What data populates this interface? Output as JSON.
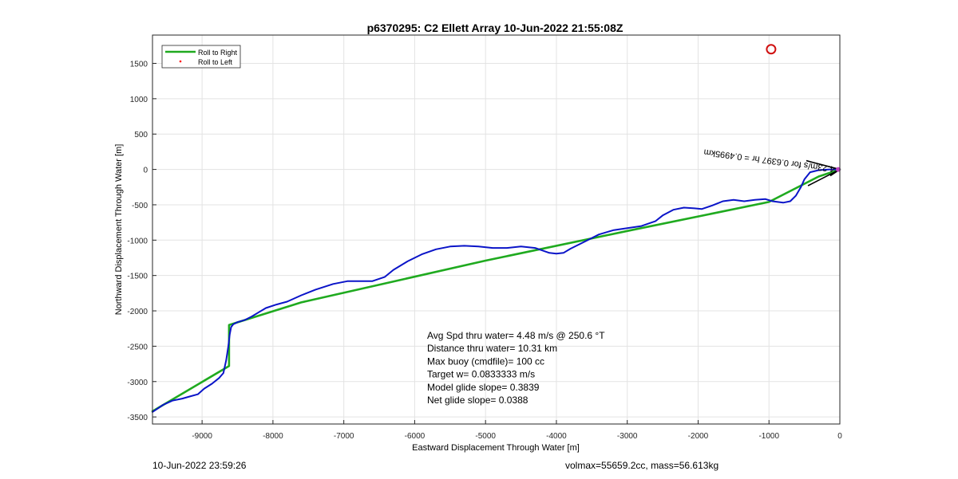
{
  "chart_data": {
    "type": "line",
    "title": "p6370295: C2 Ellett Array 10-Jun-2022 21:55:08Z",
    "xlabel": "Eastward Displacement Through Water [m]",
    "ylabel": "Northward Displacement Through Water [m]",
    "xlim": [
      -9700,
      0
    ],
    "ylim": [
      -3600,
      1900
    ],
    "xticks": [
      -9000,
      -8000,
      -7000,
      -6000,
      -5000,
      -4000,
      -3000,
      -2000,
      -1000,
      0
    ],
    "yticks": [
      -3500,
      -3000,
      -2500,
      -2000,
      -1500,
      -1000,
      -500,
      0,
      500,
      1000,
      1500
    ],
    "grid": true,
    "legend": {
      "placement": "top-left",
      "entries": [
        {
          "label": "Roll to Right",
          "color": "#1faa1f",
          "marker": "line"
        },
        {
          "label": "Roll to Left",
          "color": "#ff0000",
          "marker": "dot"
        }
      ]
    },
    "series": [
      {
        "name": "Roll to Right",
        "color": "#1faa1f",
        "x": [
          -9700,
          -8620,
          -8620,
          -7600,
          -5000,
          -3000,
          -1000,
          -300,
          0
        ],
        "y": [
          -3420,
          -2780,
          -2200,
          -1880,
          -1290,
          -870,
          -460,
          -100,
          0
        ]
      },
      {
        "color": "#0a14c8",
        "x": [
          -9700,
          -9550,
          -9420,
          -9280,
          -9170,
          -9060,
          -8970,
          -8860,
          -8760,
          -8700,
          -8660,
          -8630,
          -8610,
          -8590,
          -8560,
          -8500,
          -8400,
          -8300,
          -8200,
          -8100,
          -7950,
          -7800,
          -7600,
          -7400,
          -7150,
          -6950,
          -6800,
          -6600,
          -6420,
          -6300,
          -6100,
          -5900,
          -5700,
          -5500,
          -5300,
          -5100,
          -4900,
          -4700,
          -4500,
          -4300,
          -4100,
          -4000,
          -3900,
          -3800,
          -3600,
          -3400,
          -3200,
          -3000,
          -2800,
          -2600,
          -2500,
          -2350,
          -2200,
          -2050,
          -1950,
          -1800,
          -1650,
          -1500,
          -1350,
          -1200,
          -1050,
          -950,
          -800,
          -700,
          -620,
          -550,
          -500,
          -420,
          -300,
          -150,
          0
        ],
        "y": [
          -3430,
          -3330,
          -3270,
          -3240,
          -3210,
          -3180,
          -3100,
          -3030,
          -2950,
          -2880,
          -2700,
          -2500,
          -2330,
          -2230,
          -2190,
          -2160,
          -2130,
          -2080,
          -2020,
          -1960,
          -1910,
          -1870,
          -1780,
          -1700,
          -1620,
          -1580,
          -1580,
          -1580,
          -1520,
          -1420,
          -1300,
          -1200,
          -1130,
          -1090,
          -1080,
          -1090,
          -1110,
          -1110,
          -1090,
          -1110,
          -1180,
          -1190,
          -1180,
          -1120,
          -1020,
          -920,
          -860,
          -830,
          -800,
          -730,
          -650,
          -570,
          -540,
          -550,
          -560,
          -510,
          -450,
          -430,
          -450,
          -430,
          -420,
          -450,
          -470,
          -450,
          -370,
          -250,
          -140,
          -40,
          -10,
          0,
          0
        ]
      }
    ],
    "annotations": [
      "Avg Spd thru water=  4.48 m/s @ 250.6 °T",
      "Distance thru water= 10.31 km",
      "Max buoy (cmdfile)= 100 cc",
      "Target w= 0.0833333 m/s",
      "Model glide slope= 0.3839",
      "Net glide slope= 0.0388"
    ],
    "rotated_label": "4.23m/s for 0.6397 hr = 0.4995km",
    "marker": {
      "x": -970,
      "y": 1700,
      "color": "#d01010",
      "shape": "circle"
    },
    "arrow": {
      "x0": -450,
      "y0": -230,
      "x1": 0,
      "y1": 0,
      "color": "#000000"
    }
  },
  "footer": {
    "left": "10-Jun-2022 23:59:26",
    "right": "volmax=55659.2cc, mass=56.613kg"
  }
}
